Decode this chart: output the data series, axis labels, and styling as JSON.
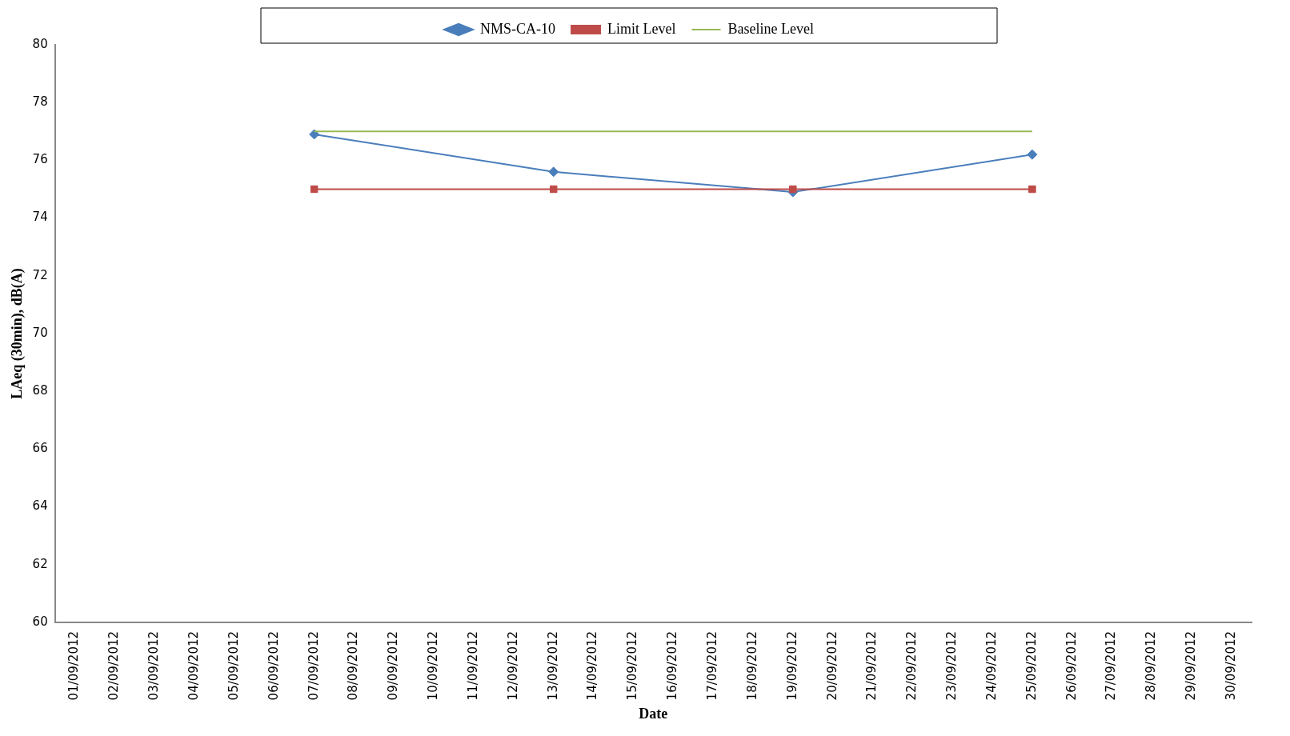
{
  "chart_data": {
    "type": "line",
    "xlabel": "Date",
    "ylabel": "LAeq (30min), dB(A)",
    "categories": [
      "01/09/2012",
      "02/09/2012",
      "03/09/2012",
      "04/09/2012",
      "05/09/2012",
      "06/09/2012",
      "07/09/2012",
      "08/09/2012",
      "09/09/2012",
      "10/09/2012",
      "11/09/2012",
      "12/09/2012",
      "13/09/2012",
      "14/09/2012",
      "15/09/2012",
      "16/09/2012",
      "17/09/2012",
      "18/09/2012",
      "19/09/2012",
      "20/09/2012",
      "21/09/2012",
      "22/09/2012",
      "23/09/2012",
      "24/09/2012",
      "25/09/2012",
      "26/09/2012",
      "27/09/2012",
      "28/09/2012",
      "29/09/2012",
      "30/09/2012"
    ],
    "series": [
      {
        "name": "NMS-CA-10",
        "color": "#4a7ebb",
        "marker": "diamond",
        "values": [
          null,
          null,
          null,
          null,
          null,
          null,
          76.9,
          null,
          null,
          null,
          null,
          null,
          75.6,
          null,
          null,
          null,
          null,
          null,
          74.9,
          null,
          null,
          null,
          null,
          null,
          76.2,
          null,
          null,
          null,
          null,
          null
        ]
      },
      {
        "name": "Limit Level",
        "color": "#be4b48",
        "marker": "square",
        "values": [
          null,
          null,
          null,
          null,
          null,
          null,
          75,
          null,
          null,
          null,
          null,
          null,
          75,
          null,
          null,
          null,
          null,
          null,
          75,
          null,
          null,
          null,
          null,
          null,
          75,
          null,
          null,
          null,
          null,
          null
        ]
      },
      {
        "name": "Baseline Level",
        "color": "#98b954",
        "marker": "none",
        "values": [
          null,
          null,
          null,
          null,
          null,
          null,
          77,
          null,
          null,
          null,
          null,
          null,
          77,
          null,
          null,
          null,
          null,
          null,
          77,
          null,
          null,
          null,
          null,
          null,
          77,
          null,
          null,
          null,
          null,
          null
        ]
      }
    ],
    "ylim": [
      60,
      80
    ],
    "yticks": [
      60,
      62,
      64,
      66,
      68,
      70,
      72,
      74,
      76,
      78,
      80
    ],
    "grid": false,
    "legend": "top"
  }
}
